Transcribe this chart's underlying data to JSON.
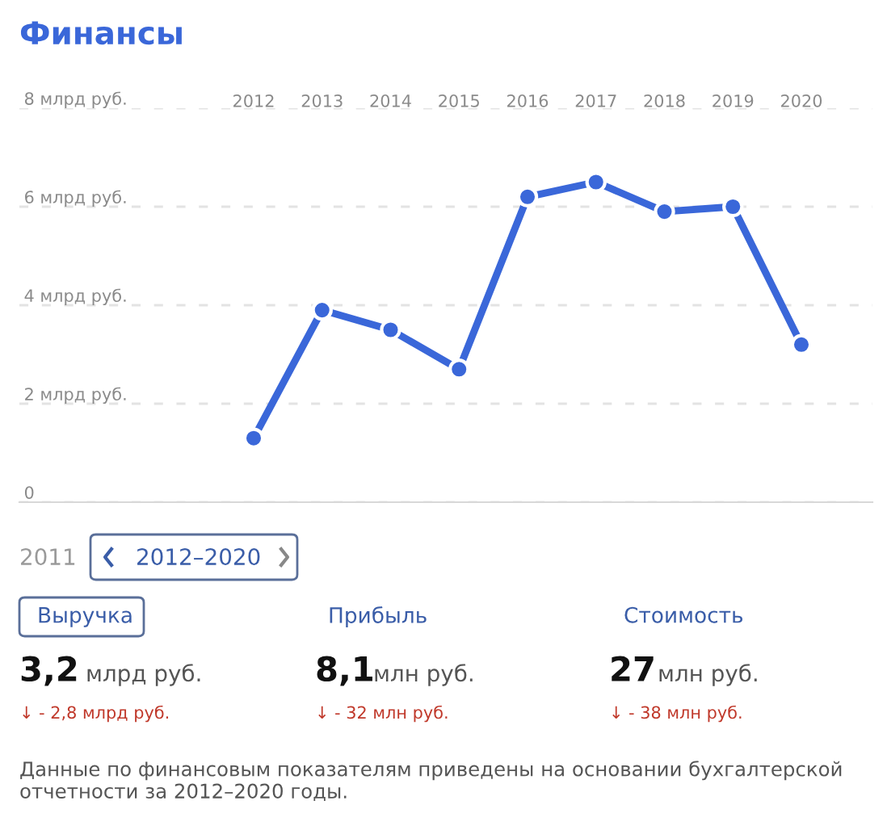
{
  "chart_data": {
    "type": "line",
    "title": "Финансы",
    "categories": [
      "2012",
      "2013",
      "2014",
      "2015",
      "2016",
      "2017",
      "2018",
      "2019",
      "2020"
    ],
    "series": [
      {
        "color": "#3a67d9",
        "values": [
          1.3,
          3.9,
          3.5,
          2.7,
          6.2,
          6.5,
          5.9,
          6.0,
          3.2
        ]
      }
    ],
    "ylim": [
      0,
      8
    ],
    "yticks": [
      0,
      {
        "value": 2,
        "label": "2 млрд руб."
      },
      {
        "value": 4,
        "label": "4 млрд руб."
      },
      {
        "value": 6,
        "label": "6 млрд руб."
      },
      {
        "value": 8,
        "label": "8 млрд руб."
      }
    ],
    "grid": "y",
    "marker": "circle",
    "line_style": "solid",
    "legend": false,
    "annotations": [
      "2011",
      "2012–2020",
      "Выручка",
      "Прибыль",
      "Стоимость",
      "3,2",
      "млрд руб.",
      "8,1",
      "млн руб.",
      "27",
      "млн руб.",
      "↓ - 2,8 млрд руб.",
      "↓ - 32 млн руб.",
      "↓ - 38 млн руб.",
      "Данные по финансовым показателям приведены на основании бухгалтерской отчетности за 2012–2020 годы."
    ]
  }
}
